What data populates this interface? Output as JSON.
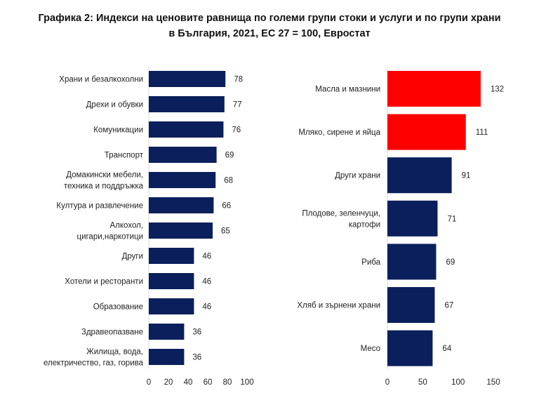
{
  "title_line1": "Графика 2: Индекси на ценовите равнища по големи групи стоки и услуги и по групи храни",
  "title_line2": "в България, 2021, ЕС 27 = 100, Евростат",
  "chart_data": [
    {
      "type": "bar",
      "orientation": "horizontal",
      "categories": [
        [
          "Храни и безалкохолни"
        ],
        [
          "Дрехи и обувки"
        ],
        [
          "Комуникации"
        ],
        [
          "Транспорт"
        ],
        [
          "Домакински мебели,",
          "техника и поддръжка"
        ],
        [
          "Култура и развлечение"
        ],
        [
          "Алкохол,",
          "цигари,наркотици"
        ],
        [
          "Други"
        ],
        [
          "Хотели и ресторанти"
        ],
        [
          "Образование"
        ],
        [
          "Здравеопазване"
        ],
        [
          "Жилища, вода,",
          "електричество, газ, горива"
        ]
      ],
      "values": [
        78,
        77,
        76,
        69,
        68,
        66,
        65,
        46,
        46,
        46,
        36,
        36
      ],
      "colors": [
        "#0a1f5c",
        "#0a1f5c",
        "#0a1f5c",
        "#0a1f5c",
        "#0a1f5c",
        "#0a1f5c",
        "#0a1f5c",
        "#0a1f5c",
        "#0a1f5c",
        "#0a1f5c",
        "#0a1f5c",
        "#0a1f5c"
      ],
      "xlim": [
        0,
        100
      ],
      "xticks": [
        0,
        20,
        40,
        60,
        80,
        100
      ]
    },
    {
      "type": "bar",
      "orientation": "horizontal",
      "categories": [
        [
          "Масла и мазнини"
        ],
        [
          "Мляко, сирене и яйца"
        ],
        [
          "Други храни"
        ],
        [
          "Плодове, зеленчуци,",
          "картофи"
        ],
        [
          "Риба"
        ],
        [
          "Хляб и зърнени храни"
        ],
        [
          "Месо"
        ]
      ],
      "values": [
        132,
        111,
        91,
        71,
        69,
        67,
        64
      ],
      "colors": [
        "#ff0000",
        "#ff0000",
        "#0a1f5c",
        "#0a1f5c",
        "#0a1f5c",
        "#0a1f5c",
        "#0a1f5c"
      ],
      "xlim": [
        0,
        150
      ],
      "xticks": [
        0,
        50,
        100,
        150
      ]
    }
  ]
}
